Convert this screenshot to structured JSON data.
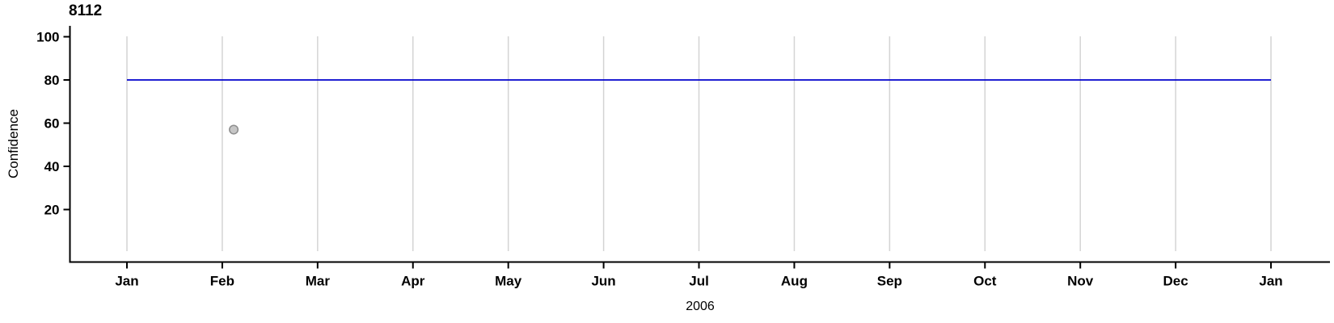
{
  "chart_data": {
    "type": "line",
    "title": "8112",
    "xlabel": "2006",
    "ylabel": "Confidence",
    "x_tick_labels": [
      "Jan",
      "Feb",
      "Mar",
      "Apr",
      "May",
      "Jun",
      "Jul",
      "Aug",
      "Sep",
      "Oct",
      "Nov",
      "Dec",
      "Jan"
    ],
    "y_tick_labels": [
      100,
      80,
      60,
      40,
      20
    ],
    "ylim": [
      0,
      104
    ],
    "x_months_span": 12,
    "grid": "vertical-only",
    "legend_position": "none",
    "colors": {
      "axis": "#000000",
      "tick_text": "#000000",
      "gridline": "#d4d4d4",
      "threshold_line": "#0000cd",
      "point_fill": "#c6c6c6",
      "point_stroke": "#8e8e8e"
    },
    "series": [
      {
        "name": "confidence-threshold-line",
        "type": "line",
        "color": "#0000cd",
        "points": [
          {
            "month": 0,
            "x_approx": "2006-01-01",
            "value": 80
          },
          {
            "month": 12,
            "x_approx": "2007-01-01",
            "value": 80
          }
        ]
      },
      {
        "name": "observation-point",
        "type": "scatter",
        "fill": "#c6c6c6",
        "stroke": "#8e8e8e",
        "points": [
          {
            "month": 1.12,
            "x_approx": "2006-02-04",
            "value": 57
          }
        ]
      }
    ]
  }
}
